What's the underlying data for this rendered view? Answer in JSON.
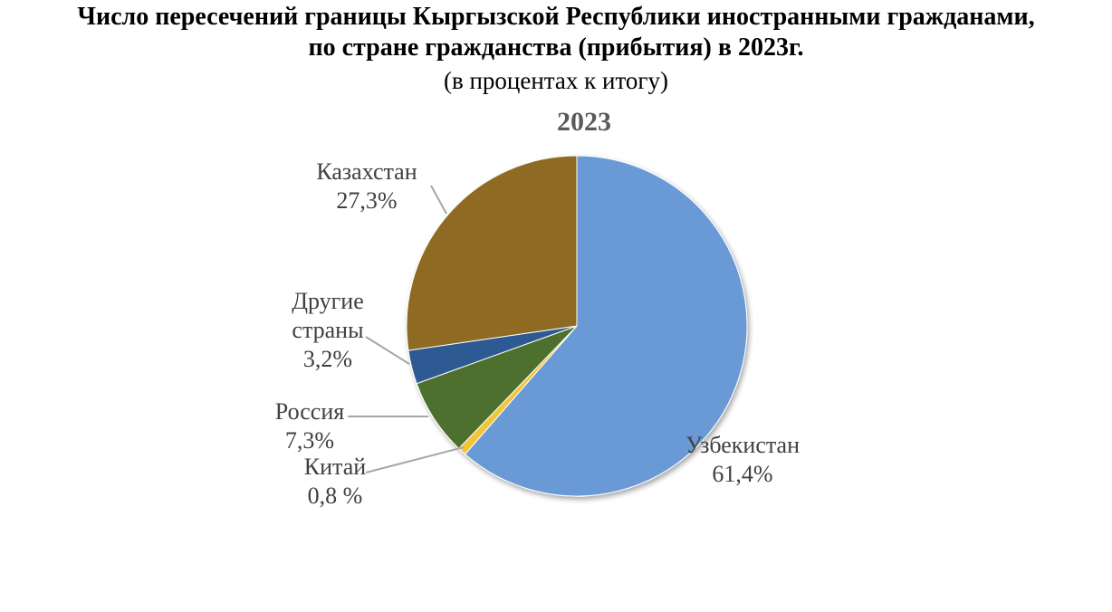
{
  "header": {
    "title_line1": "Число пересечений границы Кыргызской Республики иностранными гражданами,",
    "title_line2": "по стране гражданства  (прибытия)  в 2023г.",
    "subtitle": "(в процентах к итогу)"
  },
  "chart_data": {
    "type": "pie",
    "title": "2023",
    "slices": [
      {
        "label_lines": [
          "Узбекистан"
        ],
        "value": 61.4,
        "value_label": "61,4%",
        "color": "#6A9AD6"
      },
      {
        "label_lines": [
          "Китай"
        ],
        "value": 0.8,
        "value_label": "0,8 %",
        "color": "#F2C43A"
      },
      {
        "label_lines": [
          "Россия"
        ],
        "value": 7.3,
        "value_label": "7,3%",
        "color": "#4E6F2E"
      },
      {
        "label_lines": [
          "Другие",
          "страны"
        ],
        "value": 3.2,
        "value_label": "3,2%",
        "color": "#2F5A93"
      },
      {
        "label_lines": [
          "Казахстан"
        ],
        "value": 27.3,
        "value_label": "27,3%",
        "color": "#8E6A22"
      }
    ]
  }
}
